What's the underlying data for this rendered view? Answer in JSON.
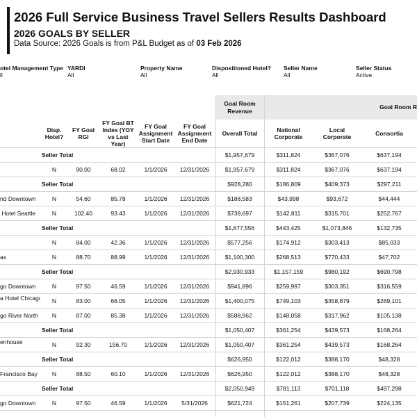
{
  "header": {
    "title": "2026 Full Service Business Travel Sellers Results Dashboard",
    "subtitle": "2026 GOALS BY SELLER",
    "source_prefix": "Data Source: 2026 Goals is from P&L Budget as of",
    "source_date": "03 Feb 2026"
  },
  "filters": [
    {
      "label": "otel Management Type",
      "value": "ll"
    },
    {
      "label": "YARDI",
      "value": "All"
    },
    {
      "label": "Property Name",
      "value": "All"
    },
    {
      "label": "Dispositioned Hotel?",
      "value": "All"
    },
    {
      "label": "Seller Name",
      "value": "All"
    },
    {
      "label": "Seller Status",
      "value": "Active"
    }
  ],
  "table": {
    "group_headers": [
      "Goal Room Revenue",
      "Goal Room R"
    ],
    "headers": [
      "Disp. Hotel?",
      "FY Goal RGI",
      "FY Goal BT Index (YOY vs Last Year)",
      "FY Goal Assignment Start Date",
      "FY Goal Assignment End Date",
      "Overall Total",
      "National Corporate",
      "Local Corporate",
      "Consortia"
    ],
    "rows": [
      {
        "label": "Seller Total",
        "cells": [
          "$1,957,679",
          "$311,824",
          "$367,076",
          "$637,194"
        ]
      },
      {
        "cells": [
          "N",
          "90.00",
          "68.02",
          "1/1/2026",
          "12/31/2026",
          "$1,957,679",
          "$311,824",
          "$367,076",
          "$637,194"
        ]
      },
      {
        "label": "Seller Total",
        "cells": [
          "$928,280",
          "$186,809",
          "$409,373",
          "$297,211"
        ]
      },
      {
        "name": "nd Downtown",
        "cells": [
          "N",
          "54.60",
          "85.78",
          "1/1/2026",
          "12/31/2026",
          "$188,583",
          "$43,998",
          "$93,672",
          "$44,444"
        ]
      },
      {
        "name": " Hotel Seattle",
        "cells": [
          "N",
          "102.40",
          "93.43",
          "1/1/2026",
          "12/31/2026",
          "$739,697",
          "$142,811",
          "$315,701",
          "$252,767"
        ]
      },
      {
        "label": "Seller Total",
        "cells": [
          "$1,677,556",
          "$443,425",
          "$1,073,846",
          "$132,735"
        ]
      },
      {
        "cells": [
          "N",
          "84.00",
          "42.36",
          "1/1/2026",
          "12/31/2026",
          "$577,256",
          "$174,912",
          "$303,413",
          "$85,033"
        ]
      },
      {
        "name": "as",
        "cells": [
          "N",
          "88.70",
          "88.99",
          "1/1/2026",
          "12/31/2026",
          "$1,100,300",
          "$268,513",
          "$770,433",
          "$47,702"
        ]
      },
      {
        "label": "Seller Total",
        "cells": [
          "$2,930,933",
          "$1,157,159",
          "$980,192",
          "$690,798"
        ]
      },
      {
        "name": "go Downtown",
        "cells": [
          "N",
          "97.50",
          "46.59",
          "1/1/2026",
          "12/31/2026",
          "$941,896",
          "$259,997",
          "$303,351",
          "$316,559"
        ]
      },
      {
        "name": "a Hotel Chicago",
        "cells": [
          "N",
          "83.00",
          "66.05",
          "1/1/2026",
          "12/31/2026",
          "$1,400,075",
          "$749,103",
          "$358,879",
          "$269,101"
        ]
      },
      {
        "name": "go River North",
        "cells": [
          "N",
          "87.00",
          "85.38",
          "1/1/2026",
          "12/31/2026",
          "$588,962",
          "$148,058",
          "$317,962",
          "$105,138"
        ]
      },
      {
        "label": "Seller Total",
        "cells": [
          "$1,050,407",
          "$361,254",
          "$439,573",
          "$168,264"
        ]
      },
      {
        "name": "enhouse",
        "cells": [
          "N",
          "92.30",
          "156.70",
          "1/1/2026",
          "12/31/2026",
          "$1,050,407",
          "$361,254",
          "$439,573",
          "$168,264"
        ]
      },
      {
        "label": "Seller Total",
        "cells": [
          "$626,950",
          "$122,012",
          "$388,170",
          "$48,328"
        ]
      },
      {
        "name": "Francisco Bay",
        "cells": [
          "N",
          "88.50",
          "60.10",
          "1/1/2026",
          "12/31/2026",
          "$626,950",
          "$122,012",
          "$388,170",
          "$48,328"
        ]
      },
      {
        "label": "Seller Total",
        "cells": [
          "$2,050,949",
          "$781,113",
          "$701,118",
          "$497,298"
        ]
      },
      {
        "name": "go Downtown",
        "cells": [
          "N",
          "97.50",
          "46.59",
          "1/1/2026",
          "5/31/2026",
          "$621,724",
          "$151,261",
          "$207,739",
          "$224,135"
        ]
      }
    ]
  }
}
